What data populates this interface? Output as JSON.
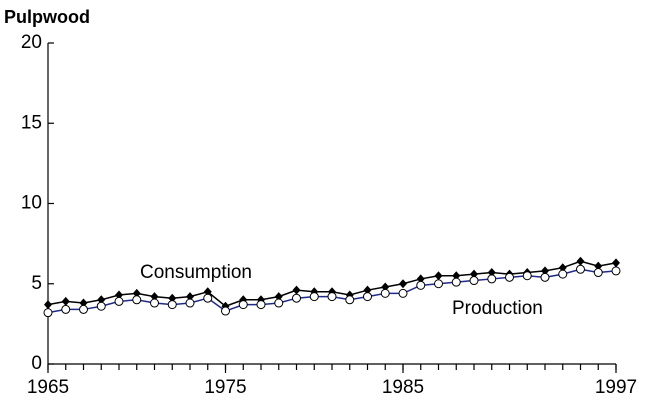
{
  "chart_data": {
    "type": "line",
    "title": "Pulpwood",
    "x": [
      1965,
      1966,
      1967,
      1968,
      1969,
      1970,
      1971,
      1972,
      1973,
      1974,
      1975,
      1976,
      1977,
      1978,
      1979,
      1980,
      1981,
      1982,
      1983,
      1984,
      1985,
      1986,
      1987,
      1988,
      1989,
      1990,
      1991,
      1992,
      1993,
      1994,
      1995,
      1996,
      1997
    ],
    "series": [
      {
        "name": "Consumption",
        "color": "#000000",
        "marker": "diamond",
        "values": [
          3.7,
          3.9,
          3.8,
          4.0,
          4.3,
          4.4,
          4.2,
          4.1,
          4.2,
          4.5,
          3.6,
          4.0,
          4.0,
          4.2,
          4.6,
          4.5,
          4.5,
          4.3,
          4.6,
          4.8,
          5.0,
          5.3,
          5.5,
          5.5,
          5.6,
          5.7,
          5.6,
          5.7,
          5.8,
          6.0,
          6.4,
          6.1,
          6.3
        ]
      },
      {
        "name": "Production",
        "color": "#1f2a8a",
        "marker": "circle",
        "values": [
          3.2,
          3.4,
          3.4,
          3.6,
          3.9,
          4.0,
          3.8,
          3.7,
          3.8,
          4.1,
          3.3,
          3.7,
          3.7,
          3.8,
          4.1,
          4.2,
          4.2,
          4.0,
          4.2,
          4.4,
          4.4,
          4.9,
          5.0,
          5.1,
          5.2,
          5.3,
          5.4,
          5.5,
          5.4,
          5.6,
          5.9,
          5.7,
          5.8
        ]
      }
    ],
    "xlim": [
      1965,
      1997
    ],
    "xticks": [
      1965,
      1975,
      1985,
      1997
    ],
    "ylim": [
      0,
      20
    ],
    "yticks": [
      0,
      5,
      10,
      15,
      20
    ]
  }
}
